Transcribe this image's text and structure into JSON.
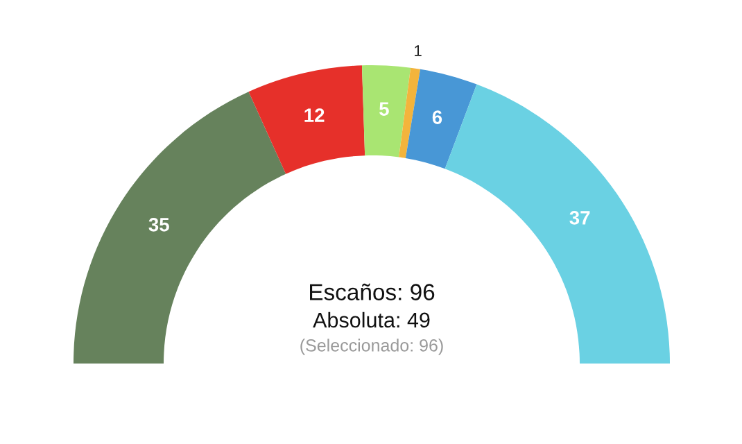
{
  "chart_data": {
    "type": "donut",
    "categories": [
      null,
      null,
      null,
      null,
      null,
      null
    ],
    "values": [
      35,
      12,
      5,
      1,
      6,
      37
    ],
    "colors": [
      "#66825c",
      "#e6302a",
      "#a9e572",
      "#f3b43c",
      "#4897d6",
      "#6ad1e3"
    ],
    "data_labels": true,
    "annotations": [
      "Escaños: 96",
      "Absoluta: 49",
      "(Seleccionado: 96)"
    ]
  }
}
